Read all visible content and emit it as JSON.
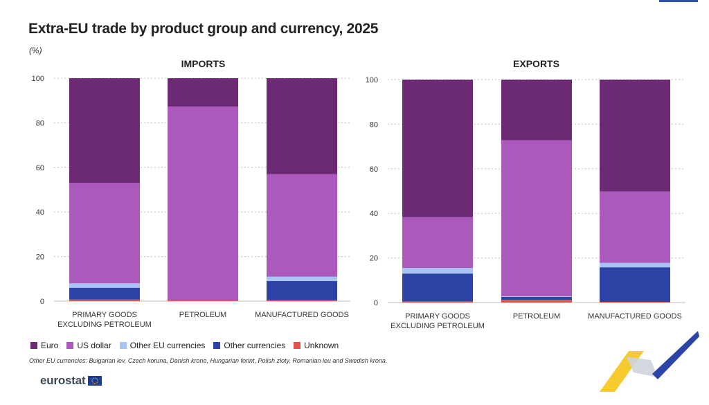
{
  "title": "Extra-EU trade by product group and currency, 2025",
  "unit": "(%)",
  "colors": {
    "euro": "#6d2a74",
    "usd": "#ab59bd",
    "other_eu": "#a9c3f4",
    "other": "#2b44a6",
    "unknown": "#e2544a",
    "grid": "#bbbbbb"
  },
  "legend": [
    {
      "label": "Euro",
      "color": "#6d2a74"
    },
    {
      "label": "US dollar",
      "color": "#ab59bd"
    },
    {
      "label": "Other EU currencies",
      "color": "#a9c3f4"
    },
    {
      "label": "Other currencies",
      "color": "#2b44a6"
    },
    {
      "label": "Unknown",
      "color": "#e2544a"
    }
  ],
  "footnote": "Other EU currencies: Bulgarian lev, Czech koruna, Danish krone, Hungarian forint, Polish złoty, Romanian leu and Swedish krona.",
  "logo_text": "eurostat",
  "chart_data": [
    {
      "type": "bar",
      "stacked": true,
      "title": "IMPORTS",
      "categories": [
        "PRIMARY GOODS|EXCLUDING PETROLEUM",
        "PETROLEUM",
        "MANUFACTURED GOODS"
      ],
      "ylim": [
        0,
        100
      ],
      "yticks": [
        0,
        20,
        40,
        60,
        80,
        100
      ],
      "grid": true,
      "series": [
        {
          "name": "Unknown",
          "values": [
            0.7,
            0.3,
            0.4
          ]
        },
        {
          "name": "Other currencies",
          "values": [
            5.3,
            0.2,
            8.6
          ]
        },
        {
          "name": "Other EU currencies",
          "values": [
            2.0,
            0.1,
            2.0
          ]
        },
        {
          "name": "US dollar",
          "values": [
            45.0,
            86.7,
            46.0
          ]
        },
        {
          "name": "Euro",
          "values": [
            47.0,
            12.7,
            43.0
          ]
        }
      ]
    },
    {
      "type": "bar",
      "stacked": true,
      "title": "EXPORTS",
      "categories": [
        "PRIMARY GOODS|EXCLUDING PETROLEUM",
        "PETROLEUM",
        "MANUFACTURED GOODS"
      ],
      "ylim": [
        0,
        100
      ],
      "yticks": [
        0,
        20,
        40,
        60,
        80,
        100
      ],
      "grid": true,
      "series": [
        {
          "name": "Unknown",
          "values": [
            0.5,
            1.2,
            0.3
          ]
        },
        {
          "name": "Other currencies",
          "values": [
            12.5,
            1.3,
            15.5
          ]
        },
        {
          "name": "Other EU currencies",
          "values": [
            2.5,
            0.3,
            2.0
          ]
        },
        {
          "name": "US dollar",
          "values": [
            22.8,
            70.0,
            32.0
          ]
        },
        {
          "name": "Euro",
          "values": [
            61.7,
            27.2,
            50.2
          ]
        }
      ]
    }
  ]
}
